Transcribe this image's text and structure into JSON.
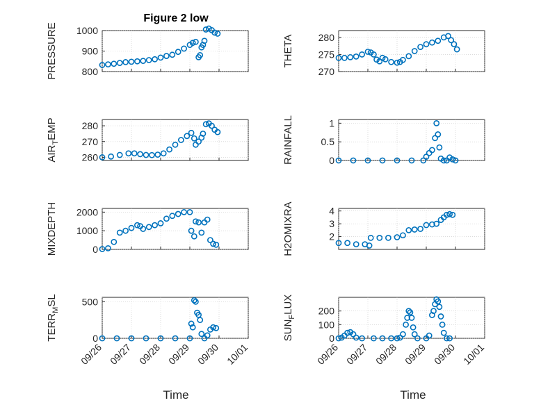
{
  "figure": {
    "title": "Figure 2 low",
    "xlabel": "Time",
    "time_ticks": [
      "09/26",
      "09/27",
      "09/28",
      "09/29",
      "09/30",
      "10/01"
    ],
    "marker_color": "#0072BD"
  },
  "chart_data": [
    {
      "type": "scatter",
      "name": "PRESSURE",
      "ylabel": "PRESSURE",
      "ylim": [
        800,
        1000
      ],
      "yticks": [
        800,
        900,
        1000
      ],
      "yticklabels": [
        "800",
        "900",
        "1000"
      ],
      "xlim": [
        0,
        5
      ],
      "x_axis": "days from 09/26",
      "grid": true,
      "points": [
        [
          0.0,
          832
        ],
        [
          0.2,
          835
        ],
        [
          0.4,
          838
        ],
        [
          0.6,
          842
        ],
        [
          0.8,
          846
        ],
        [
          1.0,
          848
        ],
        [
          1.2,
          850
        ],
        [
          1.4,
          852
        ],
        [
          1.6,
          856
        ],
        [
          1.8,
          860
        ],
        [
          2.0,
          868
        ],
        [
          2.2,
          876
        ],
        [
          2.4,
          882
        ],
        [
          2.6,
          896
        ],
        [
          2.8,
          912
        ],
        [
          3.0,
          930
        ],
        [
          3.1,
          940
        ],
        [
          3.2,
          945
        ],
        [
          3.3,
          870
        ],
        [
          3.35,
          880
        ],
        [
          3.4,
          918
        ],
        [
          3.45,
          930
        ],
        [
          3.5,
          950
        ],
        [
          3.55,
          1005
        ],
        [
          3.65,
          1010
        ],
        [
          3.75,
          1002
        ],
        [
          3.85,
          990
        ],
        [
          3.95,
          985
        ]
      ]
    },
    {
      "type": "scatter",
      "name": "THETA",
      "ylabel": "THETA",
      "ylim": [
        270,
        282
      ],
      "yticks": [
        270,
        275,
        280
      ],
      "yticklabels": [
        "270",
        "275",
        "280"
      ],
      "xlim": [
        0,
        5
      ],
      "grid": true,
      "points": [
        [
          0.0,
          274
        ],
        [
          0.2,
          274
        ],
        [
          0.4,
          274.2
        ],
        [
          0.6,
          274.4
        ],
        [
          0.8,
          275
        ],
        [
          1.0,
          275.8
        ],
        [
          1.1,
          275.6
        ],
        [
          1.2,
          275
        ],
        [
          1.3,
          273.5
        ],
        [
          1.4,
          273
        ],
        [
          1.5,
          274
        ],
        [
          1.6,
          273.6
        ],
        [
          1.8,
          272.8
        ],
        [
          2.0,
          272.6
        ],
        [
          2.1,
          272.8
        ],
        [
          2.2,
          273.4
        ],
        [
          2.4,
          274.5
        ],
        [
          2.6,
          276
        ],
        [
          2.8,
          277.2
        ],
        [
          3.0,
          278
        ],
        [
          3.2,
          278.5
        ],
        [
          3.4,
          279
        ],
        [
          3.6,
          280
        ],
        [
          3.75,
          280.4
        ],
        [
          3.85,
          279.2
        ],
        [
          3.95,
          278
        ],
        [
          4.05,
          276.5
        ]
      ]
    },
    {
      "type": "scatter",
      "name": "AIR_TEMP",
      "ylabel": "AIR_TEMP",
      "ylim": [
        258,
        284
      ],
      "yticks": [
        260,
        270,
        280
      ],
      "yticklabels": [
        "260",
        "270",
        "280"
      ],
      "xlim": [
        0,
        5
      ],
      "grid": true,
      "points": [
        [
          0.0,
          260
        ],
        [
          0.3,
          260.5
        ],
        [
          0.6,
          261.5
        ],
        [
          0.9,
          262.5
        ],
        [
          1.1,
          262.5
        ],
        [
          1.3,
          262
        ],
        [
          1.5,
          261.5
        ],
        [
          1.7,
          261.4
        ],
        [
          1.9,
          261.7
        ],
        [
          2.1,
          262.5
        ],
        [
          2.3,
          265
        ],
        [
          2.5,
          268
        ],
        [
          2.7,
          271
        ],
        [
          2.9,
          273.5
        ],
        [
          3.05,
          275.5
        ],
        [
          3.15,
          272
        ],
        [
          3.2,
          268
        ],
        [
          3.3,
          270
        ],
        [
          3.4,
          272.5
        ],
        [
          3.45,
          275
        ],
        [
          3.55,
          281
        ],
        [
          3.65,
          281.5
        ],
        [
          3.75,
          280
        ],
        [
          3.85,
          277.5
        ],
        [
          3.95,
          276
        ]
      ]
    },
    {
      "type": "scatter",
      "name": "RAINFALL",
      "ylabel": "RAINFALL",
      "ylim": [
        0,
        1.1
      ],
      "yticks": [
        0,
        0.5,
        1
      ],
      "yticklabels": [
        "0",
        "0.5",
        "1"
      ],
      "xlim": [
        0,
        5
      ],
      "grid": true,
      "points": [
        [
          0.0,
          0
        ],
        [
          0.5,
          0
        ],
        [
          1.0,
          0
        ],
        [
          1.5,
          0
        ],
        [
          2.0,
          0
        ],
        [
          2.5,
          0
        ],
        [
          2.9,
          0
        ],
        [
          3.0,
          0.1
        ],
        [
          3.1,
          0.2
        ],
        [
          3.2,
          0.28
        ],
        [
          3.3,
          0.6
        ],
        [
          3.35,
          1.0
        ],
        [
          3.4,
          0.7
        ],
        [
          3.45,
          0.35
        ],
        [
          3.5,
          0.05
        ],
        [
          3.6,
          0
        ],
        [
          3.7,
          0
        ],
        [
          3.8,
          0.08
        ],
        [
          3.9,
          0.03
        ],
        [
          4.0,
          0
        ]
      ]
    },
    {
      "type": "scatter",
      "name": "MIXDEPTH",
      "ylabel": "MIXDEPTH",
      "ylim": [
        0,
        2200
      ],
      "yticks": [
        0,
        1000,
        2000
      ],
      "yticklabels": [
        "0",
        "1000",
        "2000"
      ],
      "xlim": [
        0,
        5
      ],
      "grid": true,
      "points": [
        [
          0.0,
          20
        ],
        [
          0.2,
          60
        ],
        [
          0.4,
          400
        ],
        [
          0.6,
          900
        ],
        [
          0.8,
          1000
        ],
        [
          1.0,
          1150
        ],
        [
          1.2,
          1300
        ],
        [
          1.3,
          1250
        ],
        [
          1.4,
          1100
        ],
        [
          1.6,
          1200
        ],
        [
          1.8,
          1300
        ],
        [
          2.0,
          1400
        ],
        [
          2.2,
          1650
        ],
        [
          2.4,
          1800
        ],
        [
          2.6,
          1900
        ],
        [
          2.8,
          2000
        ],
        [
          3.0,
          2000
        ],
        [
          3.05,
          1000
        ],
        [
          3.15,
          700
        ],
        [
          3.2,
          1500
        ],
        [
          3.3,
          1450
        ],
        [
          3.4,
          900
        ],
        [
          3.5,
          1450
        ],
        [
          3.6,
          1600
        ],
        [
          3.7,
          500
        ],
        [
          3.8,
          300
        ],
        [
          3.9,
          250
        ]
      ]
    },
    {
      "type": "scatter",
      "name": "H2OMIXRA",
      "ylabel": "H2OMIXRA",
      "ylim": [
        1.0,
        4.2
      ],
      "yticks": [
        2,
        3,
        4
      ],
      "yticklabels": [
        "2",
        "3",
        "4"
      ],
      "xlim": [
        0,
        5
      ],
      "grid": true,
      "points": [
        [
          0.0,
          1.5
        ],
        [
          0.3,
          1.5
        ],
        [
          0.6,
          1.4
        ],
        [
          0.9,
          1.4
        ],
        [
          1.05,
          1.3
        ],
        [
          1.1,
          1.9
        ],
        [
          1.4,
          1.9
        ],
        [
          1.7,
          1.9
        ],
        [
          2.0,
          1.95
        ],
        [
          2.2,
          2.1
        ],
        [
          2.4,
          2.5
        ],
        [
          2.6,
          2.55
        ],
        [
          2.8,
          2.6
        ],
        [
          3.0,
          2.9
        ],
        [
          3.2,
          2.95
        ],
        [
          3.35,
          3.0
        ],
        [
          3.5,
          3.3
        ],
        [
          3.6,
          3.5
        ],
        [
          3.7,
          3.7
        ],
        [
          3.8,
          3.75
        ],
        [
          3.9,
          3.7
        ]
      ]
    },
    {
      "type": "scatter",
      "name": "TERR_MSL",
      "ylabel": "TERR_MSL",
      "ylim": [
        0,
        560
      ],
      "yticks": [
        0,
        500
      ],
      "yticklabels": [
        "0",
        "500"
      ],
      "xlim": [
        0,
        5
      ],
      "grid": true,
      "points": [
        [
          0.0,
          0
        ],
        [
          0.5,
          0
        ],
        [
          1.0,
          0
        ],
        [
          1.5,
          0
        ],
        [
          2.0,
          0
        ],
        [
          2.5,
          0
        ],
        [
          3.0,
          0
        ],
        [
          3.05,
          200
        ],
        [
          3.1,
          150
        ],
        [
          3.15,
          520
        ],
        [
          3.2,
          500
        ],
        [
          3.25,
          350
        ],
        [
          3.3,
          320
        ],
        [
          3.35,
          250
        ],
        [
          3.4,
          60
        ],
        [
          3.5,
          0
        ],
        [
          3.6,
          40
        ],
        [
          3.7,
          120
        ],
        [
          3.8,
          150
        ],
        [
          3.9,
          140
        ]
      ]
    },
    {
      "type": "scatter",
      "name": "SUN_FLUX",
      "ylabel": "SUN_FLUX",
      "ylim": [
        0,
        300
      ],
      "yticks": [
        0,
        100,
        200
      ],
      "yticklabels": [
        "0",
        "100",
        "200"
      ],
      "xlim": [
        0,
        5
      ],
      "grid": true,
      "points": [
        [
          0.0,
          0
        ],
        [
          0.1,
          5
        ],
        [
          0.2,
          20
        ],
        [
          0.3,
          40
        ],
        [
          0.4,
          45
        ],
        [
          0.5,
          30
        ],
        [
          0.6,
          5
        ],
        [
          0.8,
          0
        ],
        [
          1.2,
          0
        ],
        [
          1.5,
          0
        ],
        [
          1.8,
          0
        ],
        [
          2.0,
          0
        ],
        [
          2.1,
          5
        ],
        [
          2.2,
          30
        ],
        [
          2.3,
          100
        ],
        [
          2.35,
          150
        ],
        [
          2.4,
          200
        ],
        [
          2.45,
          190
        ],
        [
          2.5,
          150
        ],
        [
          2.55,
          80
        ],
        [
          2.6,
          30
        ],
        [
          2.7,
          0
        ],
        [
          3.0,
          0
        ],
        [
          3.1,
          20
        ],
        [
          3.2,
          170
        ],
        [
          3.25,
          200
        ],
        [
          3.3,
          250
        ],
        [
          3.35,
          285
        ],
        [
          3.4,
          270
        ],
        [
          3.45,
          230
        ],
        [
          3.5,
          160
        ],
        [
          3.55,
          100
        ],
        [
          3.6,
          40
        ],
        [
          3.7,
          0
        ],
        [
          3.8,
          0
        ]
      ]
    }
  ]
}
